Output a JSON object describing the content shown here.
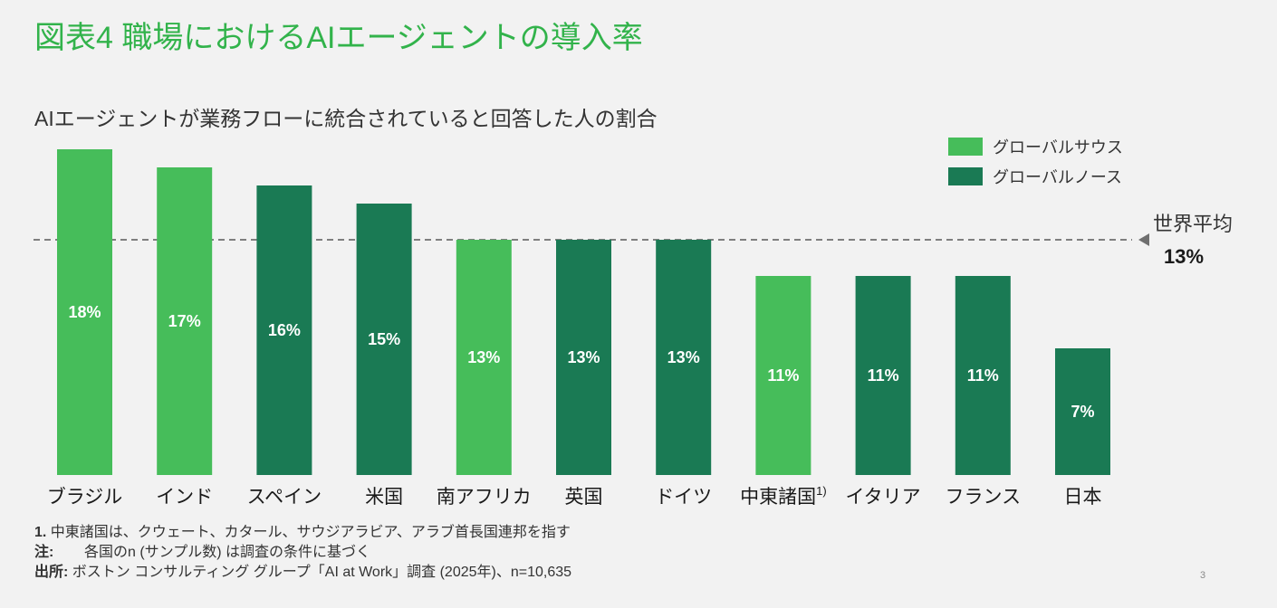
{
  "title": "図表4  職場におけるAIエージェントの導入率",
  "subtitle": "AIエージェントが業務フローに統合されていると回答した人の割合",
  "colors": {
    "global_south": "#46bd5a",
    "global_north": "#1a7a54",
    "title": "#32b34b",
    "average_line": "#7f7f7f"
  },
  "chart_data": {
    "type": "bar",
    "title": "AIエージェントが業務フローに統合されていると回答した人の割合",
    "categories": [
      "ブラジル",
      "インド",
      "スペイン",
      "米国",
      "南アフリカ",
      "英国",
      "ドイツ",
      "中東諸国",
      "イタリア",
      "フランス",
      "日本"
    ],
    "category_superscripts": [
      "",
      "",
      "",
      "",
      "",
      "",
      "",
      "1)",
      "",
      "",
      ""
    ],
    "values": [
      18,
      17,
      16,
      15,
      13,
      13,
      13,
      11,
      11,
      11,
      7
    ],
    "value_labels": [
      "18%",
      "17%",
      "16%",
      "15%",
      "13%",
      "13%",
      "13%",
      "11%",
      "11%",
      "11%",
      "7%"
    ],
    "groups": [
      "global_south",
      "global_south",
      "global_north",
      "global_north",
      "global_south",
      "global_north",
      "global_north",
      "global_south",
      "global_north",
      "global_north",
      "global_north"
    ],
    "legend": [
      {
        "key": "global_south",
        "label": "グローバルサウス"
      },
      {
        "key": "global_north",
        "label": "グローバルノース"
      }
    ],
    "legend_position": "top-right",
    "reference_line": {
      "value": 13,
      "label": "世界平均",
      "value_label": "13%"
    },
    "ylim": [
      0,
      18
    ],
    "xlabel": "",
    "ylabel": "",
    "grid": false
  },
  "notes": {
    "note1_prefix": "1.",
    "note1_text": "中東諸国は、クウェート、カタール、サウジアラビア、アラブ首長国連邦を指す",
    "note2_prefix": "注:",
    "note2_text": "各国のn (サンプル数) は調査の条件に基づく",
    "source_prefix": "出所:",
    "source_text": "ボストン コンサルティング グループ「AI at Work」調査 (2025年)、n=10,635"
  },
  "page_number": "3"
}
